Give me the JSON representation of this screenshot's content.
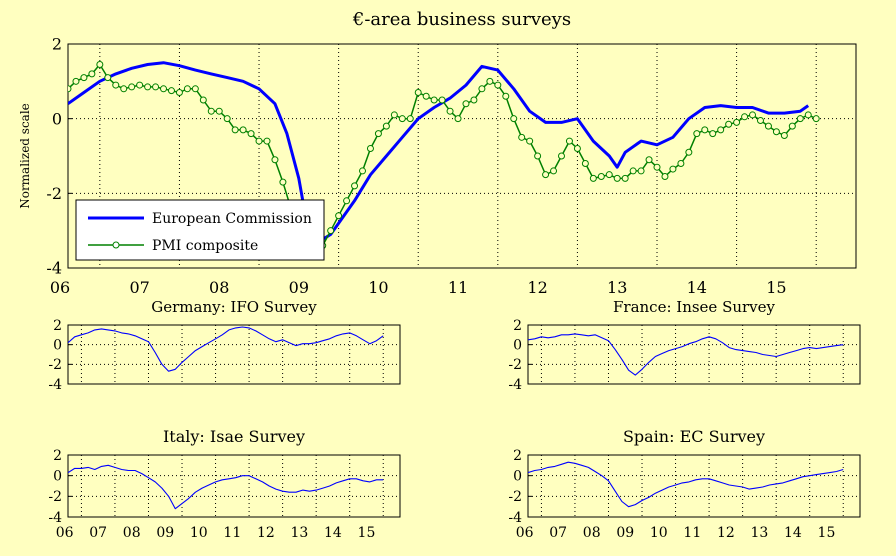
{
  "figure": {
    "background": "#ffffc0",
    "line_color_blue": "#0000ff",
    "line_color_green": "#008000",
    "marker_fill": "#ffffc0"
  },
  "chart_data": [
    {
      "id": "main",
      "type": "line",
      "title": "€-area business surveys",
      "ylabel": "Normalized scale",
      "xlabel": "",
      "xlim": [
        2005.6,
        2015.5
      ],
      "ylim": [
        -4,
        2
      ],
      "yticks": [
        -4,
        -2,
        0,
        2
      ],
      "xticks": [
        2006,
        2007,
        2008,
        2009,
        2010,
        2011,
        2012,
        2013,
        2014,
        2015
      ],
      "xtick_labels": [
        "06",
        "07",
        "08",
        "09",
        "10",
        "11",
        "12",
        "13",
        "14",
        "15"
      ],
      "grid": "dotted",
      "legend": "bottom-left",
      "series": [
        {
          "name": "European Commission",
          "color": "#0000ff",
          "style": "line",
          "x": [
            2005.6,
            2005.8,
            2006.0,
            2006.2,
            2006.4,
            2006.6,
            2006.8,
            2007.0,
            2007.2,
            2007.4,
            2007.6,
            2007.8,
            2008.0,
            2008.2,
            2008.35,
            2008.5,
            2008.6,
            2008.75,
            2008.9,
            2009.0,
            2009.2,
            2009.4,
            2009.6,
            2009.8,
            2010.0,
            2010.2,
            2010.4,
            2010.6,
            2010.8,
            2011.0,
            2011.2,
            2011.4,
            2011.6,
            2011.8,
            2012.0,
            2012.2,
            2012.4,
            2012.5,
            2012.6,
            2012.8,
            2013.0,
            2013.2,
            2013.4,
            2013.6,
            2013.8,
            2014.0,
            2014.2,
            2014.4,
            2014.6,
            2014.8,
            2014.9
          ],
          "y": [
            0.4,
            0.7,
            1.0,
            1.2,
            1.35,
            1.45,
            1.5,
            1.42,
            1.3,
            1.2,
            1.1,
            1.0,
            0.8,
            0.4,
            -0.4,
            -1.6,
            -2.8,
            -3.3,
            -3.1,
            -2.8,
            -2.2,
            -1.5,
            -1.0,
            -0.5,
            0.0,
            0.3,
            0.55,
            0.9,
            1.4,
            1.3,
            0.8,
            0.2,
            -0.1,
            -0.1,
            0.0,
            -0.6,
            -1.0,
            -1.3,
            -0.9,
            -0.6,
            -0.7,
            -0.5,
            0.0,
            0.3,
            0.35,
            0.3,
            0.3,
            0.15,
            0.15,
            0.2,
            0.35
          ]
        },
        {
          "name": "PMI composite",
          "color": "#008000",
          "style": "line-circles",
          "x": [
            2005.6,
            2005.7,
            2005.8,
            2005.9,
            2006.0,
            2006.1,
            2006.2,
            2006.3,
            2006.4,
            2006.5,
            2006.6,
            2006.7,
            2006.8,
            2006.9,
            2007.0,
            2007.1,
            2007.2,
            2007.3,
            2007.4,
            2007.5,
            2007.6,
            2007.7,
            2007.8,
            2007.9,
            2008.0,
            2008.1,
            2008.2,
            2008.3,
            2008.4,
            2008.5,
            2008.6,
            2008.7,
            2008.8,
            2008.9,
            2009.0,
            2009.1,
            2009.2,
            2009.3,
            2009.4,
            2009.5,
            2009.6,
            2009.7,
            2009.8,
            2009.9,
            2010.0,
            2010.1,
            2010.2,
            2010.3,
            2010.4,
            2010.5,
            2010.6,
            2010.7,
            2010.8,
            2010.9,
            2011.0,
            2011.1,
            2011.2,
            2011.3,
            2011.4,
            2011.5,
            2011.6,
            2011.7,
            2011.8,
            2011.9,
            2012.0,
            2012.1,
            2012.2,
            2012.3,
            2012.4,
            2012.5,
            2012.6,
            2012.7,
            2012.8,
            2012.9,
            2013.0,
            2013.1,
            2013.2,
            2013.3,
            2013.4,
            2013.5,
            2013.6,
            2013.7,
            2013.8,
            2013.9,
            2014.0,
            2014.1,
            2014.2,
            2014.3,
            2014.4,
            2014.5,
            2014.6,
            2014.7,
            2014.8,
            2014.9,
            2015.0
          ],
          "y": [
            0.8,
            1.0,
            1.1,
            1.2,
            1.45,
            1.1,
            0.9,
            0.8,
            0.85,
            0.9,
            0.85,
            0.85,
            0.8,
            0.75,
            0.7,
            0.8,
            0.8,
            0.5,
            0.2,
            0.2,
            0.0,
            -0.3,
            -0.3,
            -0.4,
            -0.6,
            -0.6,
            -1.1,
            -1.7,
            -2.4,
            -3.0,
            -3.5,
            -3.6,
            -3.4,
            -3.0,
            -2.6,
            -2.2,
            -1.8,
            -1.4,
            -0.8,
            -0.4,
            -0.2,
            0.1,
            0.0,
            0.0,
            0.7,
            0.6,
            0.5,
            0.5,
            0.2,
            0.0,
            0.4,
            0.5,
            0.8,
            1.0,
            0.9,
            0.6,
            0.0,
            -0.5,
            -0.6,
            -1.0,
            -1.5,
            -1.4,
            -1.0,
            -0.6,
            -0.8,
            -1.2,
            -1.6,
            -1.55,
            -1.5,
            -1.6,
            -1.6,
            -1.4,
            -1.4,
            -1.1,
            -1.3,
            -1.55,
            -1.35,
            -1.2,
            -0.9,
            -0.4,
            -0.3,
            -0.4,
            -0.3,
            -0.15,
            -0.1,
            0.05,
            0.1,
            -0.05,
            -0.2,
            -0.35,
            -0.45,
            -0.2,
            0.0,
            0.1,
            0.0
          ]
        }
      ]
    },
    {
      "id": "germany",
      "type": "line",
      "title": "Germany: IFO Survey",
      "xlim": [
        2005.6,
        2015.5
      ],
      "ylim": [
        -4,
        2
      ],
      "yticks": [
        -4,
        -2,
        0,
        2
      ],
      "xticks": [
        2006,
        2007,
        2008,
        2009,
        2010,
        2011,
        2012,
        2013,
        2014,
        2015
      ],
      "xtick_labels": [],
      "grid": "dotted",
      "series": [
        {
          "color": "#0000ff",
          "x": [
            2005.6,
            2005.8,
            2006.0,
            2006.2,
            2006.4,
            2006.6,
            2006.8,
            2007.0,
            2007.2,
            2007.4,
            2007.6,
            2007.8,
            2008.0,
            2008.2,
            2008.4,
            2008.6,
            2008.8,
            2009.0,
            2009.2,
            2009.4,
            2009.6,
            2009.8,
            2010.0,
            2010.2,
            2010.4,
            2010.6,
            2010.8,
            2011.0,
            2011.2,
            2011.4,
            2011.6,
            2011.8,
            2012.0,
            2012.2,
            2012.4,
            2012.6,
            2012.8,
            2013.0,
            2013.2,
            2013.4,
            2013.6,
            2013.8,
            2014.0,
            2014.2,
            2014.4,
            2014.6,
            2014.8,
            2015.0
          ],
          "y": [
            0.2,
            0.8,
            1.0,
            1.2,
            1.5,
            1.6,
            1.5,
            1.4,
            1.2,
            1.1,
            0.9,
            0.6,
            0.3,
            -0.8,
            -2.0,
            -2.7,
            -2.5,
            -1.8,
            -1.2,
            -0.6,
            -0.2,
            0.2,
            0.6,
            1.0,
            1.5,
            1.7,
            1.8,
            1.7,
            1.4,
            1.0,
            0.6,
            0.3,
            0.5,
            0.2,
            -0.1,
            0.1,
            0.1,
            0.2,
            0.4,
            0.6,
            0.9,
            1.1,
            1.2,
            0.9,
            0.5,
            0.1,
            0.4,
            0.9
          ]
        }
      ]
    },
    {
      "id": "france",
      "type": "line",
      "title": "France: Insee Survey",
      "xlim": [
        2005.6,
        2015.5
      ],
      "ylim": [
        -4,
        2
      ],
      "yticks": [
        -4,
        -2,
        0,
        2
      ],
      "xticks": [
        2006,
        2007,
        2008,
        2009,
        2010,
        2011,
        2012,
        2013,
        2014,
        2015
      ],
      "xtick_labels": [],
      "grid": "dotted",
      "series": [
        {
          "color": "#0000ff",
          "x": [
            2005.6,
            2005.8,
            2006.0,
            2006.2,
            2006.4,
            2006.6,
            2006.8,
            2007.0,
            2007.2,
            2007.4,
            2007.6,
            2007.8,
            2008.0,
            2008.2,
            2008.4,
            2008.6,
            2008.8,
            2009.0,
            2009.2,
            2009.4,
            2009.6,
            2009.8,
            2010.0,
            2010.2,
            2010.4,
            2010.6,
            2010.8,
            2011.0,
            2011.2,
            2011.4,
            2011.6,
            2011.8,
            2012.0,
            2012.2,
            2012.4,
            2012.6,
            2012.8,
            2013.0,
            2013.2,
            2013.4,
            2013.6,
            2013.8,
            2014.0,
            2014.2,
            2014.4,
            2014.6,
            2014.8,
            2015.0
          ],
          "y": [
            0.5,
            0.6,
            0.8,
            0.7,
            0.8,
            1.0,
            1.0,
            1.1,
            1.0,
            0.9,
            1.0,
            0.7,
            0.4,
            -0.5,
            -1.5,
            -2.6,
            -3.1,
            -2.5,
            -1.8,
            -1.2,
            -0.9,
            -0.6,
            -0.4,
            -0.2,
            0.1,
            0.3,
            0.6,
            0.8,
            0.6,
            0.2,
            -0.3,
            -0.5,
            -0.6,
            -0.7,
            -0.8,
            -1.0,
            -1.1,
            -1.2,
            -1.0,
            -0.8,
            -0.6,
            -0.4,
            -0.3,
            -0.4,
            -0.3,
            -0.2,
            -0.1,
            0.0
          ]
        }
      ]
    },
    {
      "id": "italy",
      "type": "line",
      "title": "Italy: Isae Survey",
      "xlim": [
        2005.6,
        2015.5
      ],
      "ylim": [
        -4,
        2
      ],
      "yticks": [
        -4,
        -2,
        0,
        2
      ],
      "xticks": [
        2006,
        2007,
        2008,
        2009,
        2010,
        2011,
        2012,
        2013,
        2014,
        2015
      ],
      "xtick_labels": [
        "06",
        "07",
        "08",
        "09",
        "10",
        "11",
        "12",
        "13",
        "14",
        "15"
      ],
      "grid": "dotted",
      "series": [
        {
          "color": "#0000ff",
          "x": [
            2005.6,
            2005.8,
            2006.0,
            2006.2,
            2006.4,
            2006.6,
            2006.8,
            2007.0,
            2007.2,
            2007.4,
            2007.6,
            2007.8,
            2008.0,
            2008.2,
            2008.4,
            2008.6,
            2008.8,
            2009.0,
            2009.2,
            2009.4,
            2009.6,
            2009.8,
            2010.0,
            2010.2,
            2010.4,
            2010.6,
            2010.8,
            2011.0,
            2011.2,
            2011.4,
            2011.6,
            2011.8,
            2012.0,
            2012.2,
            2012.4,
            2012.6,
            2012.8,
            2013.0,
            2013.2,
            2013.4,
            2013.6,
            2013.8,
            2014.0,
            2014.2,
            2014.4,
            2014.6,
            2014.8,
            2015.0
          ],
          "y": [
            0.3,
            0.7,
            0.7,
            0.8,
            0.6,
            0.9,
            1.0,
            0.8,
            0.6,
            0.5,
            0.5,
            0.2,
            -0.2,
            -0.6,
            -1.2,
            -2.0,
            -3.2,
            -2.7,
            -2.2,
            -1.6,
            -1.2,
            -0.9,
            -0.6,
            -0.4,
            -0.3,
            -0.2,
            0.0,
            0.0,
            -0.3,
            -0.6,
            -1.0,
            -1.3,
            -1.5,
            -1.6,
            -1.6,
            -1.4,
            -1.5,
            -1.4,
            -1.2,
            -1.0,
            -0.7,
            -0.5,
            -0.3,
            -0.3,
            -0.5,
            -0.6,
            -0.4,
            -0.4
          ]
        }
      ]
    },
    {
      "id": "spain",
      "type": "line",
      "title": "Spain: EC Survey",
      "xlim": [
        2005.6,
        2015.5
      ],
      "ylim": [
        -4,
        2
      ],
      "yticks": [
        -4,
        -2,
        0,
        2
      ],
      "xticks": [
        2006,
        2007,
        2008,
        2009,
        2010,
        2011,
        2012,
        2013,
        2014,
        2015
      ],
      "xtick_labels": [
        "06",
        "07",
        "08",
        "09",
        "10",
        "11",
        "12",
        "13",
        "14",
        "15"
      ],
      "grid": "dotted",
      "series": [
        {
          "color": "#0000ff",
          "x": [
            2005.6,
            2005.8,
            2006.0,
            2006.2,
            2006.4,
            2006.6,
            2006.8,
            2007.0,
            2007.2,
            2007.4,
            2007.6,
            2007.8,
            2008.0,
            2008.2,
            2008.4,
            2008.6,
            2008.8,
            2009.0,
            2009.2,
            2009.4,
            2009.6,
            2009.8,
            2010.0,
            2010.2,
            2010.4,
            2010.6,
            2010.8,
            2011.0,
            2011.2,
            2011.4,
            2011.6,
            2011.8,
            2012.0,
            2012.2,
            2012.4,
            2012.6,
            2012.8,
            2013.0,
            2013.2,
            2013.4,
            2013.6,
            2013.8,
            2014.0,
            2014.2,
            2014.4,
            2014.6,
            2014.8,
            2015.0
          ],
          "y": [
            0.3,
            0.5,
            0.6,
            0.8,
            0.9,
            1.1,
            1.3,
            1.2,
            1.0,
            0.8,
            0.4,
            0.0,
            -0.5,
            -1.5,
            -2.5,
            -3.0,
            -2.8,
            -2.4,
            -2.1,
            -1.7,
            -1.4,
            -1.1,
            -0.9,
            -0.7,
            -0.6,
            -0.4,
            -0.3,
            -0.3,
            -0.5,
            -0.7,
            -0.9,
            -1.0,
            -1.1,
            -1.3,
            -1.2,
            -1.1,
            -0.9,
            -0.8,
            -0.7,
            -0.5,
            -0.3,
            -0.1,
            0.0,
            0.1,
            0.2,
            0.3,
            0.4,
            0.6
          ]
        }
      ]
    }
  ]
}
